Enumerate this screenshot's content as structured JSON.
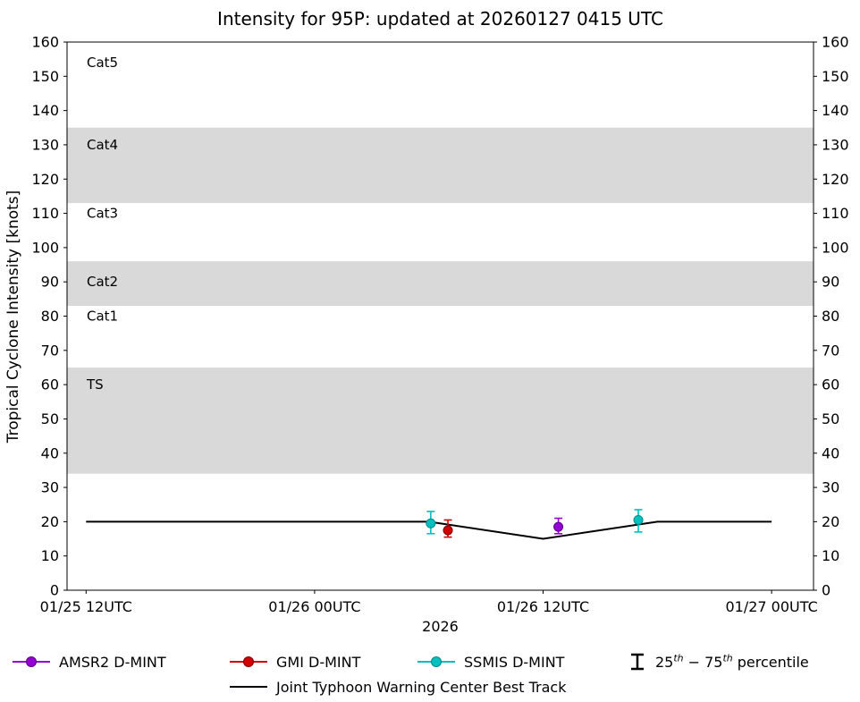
{
  "chart_data": {
    "type": "line",
    "title": "Intensity for 95P: updated at 20260127 0415 UTC",
    "xlabel": "2026",
    "ylabel": "Tropical Cyclone Intensity [knots]",
    "ylim": [
      0,
      160
    ],
    "ytick_step": 10,
    "xlim_hours": [
      -1.0,
      38.2
    ],
    "xticks": [
      {
        "hour": 0,
        "label": "01/25 12UTC"
      },
      {
        "hour": 12,
        "label": "01/26 00UTC"
      },
      {
        "hour": 24,
        "label": "01/26 12UTC"
      },
      {
        "hour": 36,
        "label": "01/27 00UTC"
      }
    ],
    "bands": [
      {
        "label": "TS",
        "ymin": 34,
        "ymax": 65,
        "shaded": true,
        "label_y": 60
      },
      {
        "label": "Cat1",
        "ymin": 65,
        "ymax": 83,
        "shaded": false,
        "label_y": 80
      },
      {
        "label": "Cat2",
        "ymin": 83,
        "ymax": 96,
        "shaded": true,
        "label_y": 90
      },
      {
        "label": "Cat3",
        "ymin": 96,
        "ymax": 113,
        "shaded": false,
        "label_y": 110
      },
      {
        "label": "Cat4",
        "ymin": 113,
        "ymax": 135,
        "shaded": true,
        "label_y": 130
      },
      {
        "label": "Cat5",
        "ymin": 135,
        "ymax": 160,
        "shaded": false,
        "label_y": 154
      }
    ],
    "series": [
      {
        "key": "amsr2",
        "name": "AMSR2 D-MINT",
        "color": "#9400d3",
        "edge": "#5c0087"
      },
      {
        "key": "gmi",
        "name": "GMI D-MINT",
        "color": "#d40000",
        "edge": "#7a0000"
      },
      {
        "key": "ssmis",
        "name": "SSMIS D-MINT",
        "color": "#00bfbf",
        "edge": "#008b8b"
      }
    ],
    "observations": [
      {
        "series": "SSMIS D-MINT",
        "hour": 18.1,
        "value": 19.5,
        "p25": 16.5,
        "p75": 23.0
      },
      {
        "series": "GMI D-MINT",
        "hour": 19.0,
        "value": 17.5,
        "p25": 15.5,
        "p75": 20.5
      },
      {
        "series": "AMSR2 D-MINT",
        "hour": 24.8,
        "value": 18.5,
        "p25": 16.5,
        "p75": 21.0
      },
      {
        "series": "SSMIS D-MINT",
        "hour": 29.0,
        "value": 20.5,
        "p25": 17.0,
        "p75": 23.5
      }
    ],
    "best_track": {
      "label": "Joint Typhoon Warning Center Best Track",
      "color": "#000000",
      "points": [
        {
          "hour": 0,
          "value": 20
        },
        {
          "hour": 18,
          "value": 20
        },
        {
          "hour": 24,
          "value": 15
        },
        {
          "hour": 30,
          "value": 20
        },
        {
          "hour": 36,
          "value": 20
        }
      ]
    },
    "style": {
      "band_color": "#d9d9d9",
      "axes_color": "#000000",
      "background": "#ffffff"
    },
    "legend": {
      "percentile": {
        "prefix": "25",
        "sup": "th",
        "mid": " − 75",
        "suffix": " percentile"
      }
    }
  }
}
